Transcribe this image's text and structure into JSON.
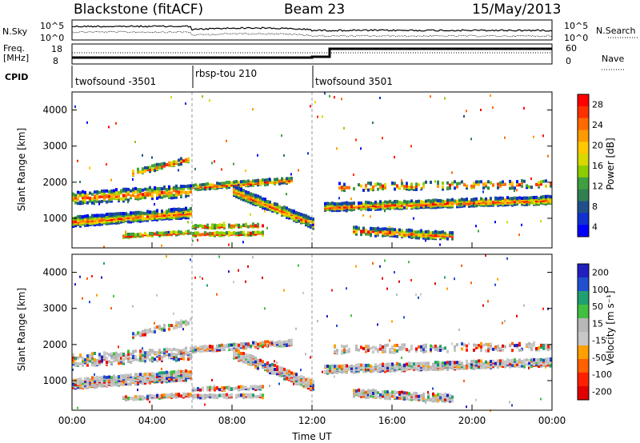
{
  "header": {
    "station": "Blackstone (fitACF)",
    "beam": "Beam 23",
    "date": "15/May/2013"
  },
  "noise_panel": {
    "left_label": "N.Sky",
    "left_ticks": [
      "10^5",
      "10^0"
    ],
    "right_label": "N.Search",
    "right_ticks": [
      "10^5",
      "10^0"
    ]
  },
  "freq_panel": {
    "left_label_1": "Freq.",
    "left_label_2": "[MHz]",
    "left_ticks": [
      "18",
      "8"
    ],
    "right_label": "Nave",
    "right_ticks": [
      "60",
      "0"
    ]
  },
  "cpid": {
    "label": "CPID",
    "programs": [
      {
        "name": "twofsound -3501",
        "start_hour": 0
      },
      {
        "name": "rbsp-tou 210",
        "start_hour": 6
      },
      {
        "name": "twofsound 3501",
        "start_hour": 12
      }
    ]
  },
  "chart_data": [
    {
      "type": "heatmap",
      "quantity": "power",
      "ylabel": "Slant Range [km]",
      "yticks": [
        "4000",
        "3000",
        "2000",
        "1000"
      ],
      "ylim": [
        180,
        4500
      ],
      "xlim": [
        0,
        24
      ],
      "colorbar": {
        "label": "Power [dB]",
        "ticks": [
          "28",
          "24",
          "20",
          "16",
          "12",
          "8",
          "4"
        ],
        "colors": [
          "#ff0000",
          "#ff3000",
          "#ff6a00",
          "#ff9a00",
          "#ffc800",
          "#d8d800",
          "#8ccd00",
          "#40a040",
          "#308050",
          "#20508a",
          "#1030d0",
          "#0000ff"
        ]
      }
    },
    {
      "type": "heatmap",
      "quantity": "velocity",
      "ylabel": "Slant Range [km]",
      "yticks": [
        "4000",
        "3000",
        "2000",
        "1000"
      ],
      "ylim": [
        180,
        4500
      ],
      "xlim": [
        0,
        24
      ],
      "colorbar": {
        "label": "Velocity [m s⁻¹]",
        "ticks": [
          "200",
          "100",
          "50",
          "15",
          "-15",
          "-50",
          "-100",
          "-200"
        ],
        "colors": [
          "#2020c0",
          "#2050d0",
          "#20a070",
          "#40c040",
          "#b8b8b8",
          "#c8c8c8",
          "#ffa000",
          "#ff6000",
          "#ff2000",
          "#e00000"
        ]
      }
    }
  ],
  "x_axis": {
    "ticks": [
      "00:00",
      "04:00",
      "08:00",
      "12:00",
      "16:00",
      "20:00",
      "00:00"
    ],
    "label": "Time UT"
  }
}
